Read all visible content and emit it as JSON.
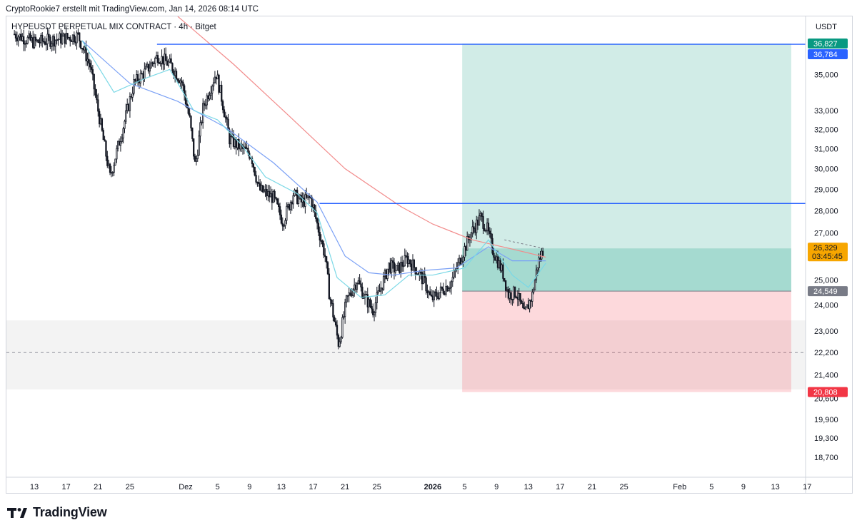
{
  "header": {
    "attribution": "CryptoRookie7 erstellt mit TradingView.com, Jan 14, 2026 08:14 UTC"
  },
  "footer": {
    "brand": "TradingView",
    "logo_icon": "tradingview-logo-icon"
  },
  "chart_data": {
    "type": "candlestick",
    "symbol_label": "HYPEUSDT PERPETUAL MIX CONTRACT · 4h · Bitget",
    "currency": "USDT",
    "y_scale": "log",
    "ylim": [
      18100,
      38500
    ],
    "y_ticks": [
      35000,
      33000,
      32000,
      31000,
      30000,
      29000,
      28000,
      27000,
      25000,
      24000,
      23000,
      22200,
      21400,
      20600,
      19900,
      19300,
      18700
    ],
    "y_tick_labels": [
      "35,000",
      "33,000",
      "32,000",
      "31,000",
      "30,000",
      "29,000",
      "28,000",
      "27,000",
      "25,000",
      "24,000",
      "23,000",
      "22,200",
      "21,400",
      "20,600",
      "19,900",
      "19,300",
      "18,700"
    ],
    "x_labels": [
      "13",
      "17",
      "21",
      "25",
      "Dez",
      "5",
      "9",
      "13",
      "17",
      "21",
      "25",
      "2026",
      "5",
      "9",
      "13",
      "17",
      "21",
      "25",
      "Feb",
      "5",
      "9",
      "13",
      "17"
    ],
    "x_label_days": [
      -50,
      -46,
      -42,
      -38,
      -31,
      -27,
      -23,
      -19,
      -15,
      -11,
      -7,
      0,
      4,
      8,
      12,
      16,
      20,
      24,
      31,
      35,
      39,
      43,
      47
    ],
    "x_bold_labels": [
      "2026"
    ],
    "x_day_range": [
      -53.5,
      46.8
    ],
    "x_unit": "days from 2026-01-01",
    "horizontal_levels": [
      {
        "value": 36784,
        "label": "36,784",
        "color": "#2962ff",
        "from_day": -34.6
      },
      {
        "value": 28340,
        "label": "28,340",
        "color": "#2962ff",
        "from_day": -14.2
      }
    ],
    "price_tags": [
      {
        "value": 36827,
        "label": "36,827",
        "color": "#089981"
      },
      {
        "value": 36784,
        "label": "36,784",
        "color": "#2962ff"
      },
      {
        "value": 26329,
        "label": "26,329",
        "sublabel": "03:45:45",
        "color": "#f7a600",
        "text_color": "#131722"
      },
      {
        "value": 24549,
        "label": "24,549",
        "color": "#787b86"
      },
      {
        "value": 20808,
        "label": "20,808",
        "color": "#f23645"
      }
    ],
    "position": {
      "type": "long",
      "entry": 24549,
      "target": 36827,
      "stop": 20808,
      "current": 26329,
      "start_day": 3.7,
      "end_day": 45
    },
    "support_zone": {
      "top": 23400,
      "bottom": 20900,
      "mid": 22200
    },
    "ohlc_anchors": [
      [
        -52.5,
        37400
      ],
      [
        -50,
        36900
      ],
      [
        -47,
        37100
      ],
      [
        -44.5,
        37300
      ],
      [
        -43,
        35500
      ],
      [
        -42,
        33000
      ],
      [
        -40.5,
        29600
      ],
      [
        -38.8,
        32200
      ],
      [
        -37.5,
        34500
      ],
      [
        -36,
        35200
      ],
      [
        -34.5,
        36100
      ],
      [
        -32.8,
        35500
      ],
      [
        -31.5,
        34600
      ],
      [
        -30.5,
        32500
      ],
      [
        -29.8,
        30100
      ],
      [
        -28.8,
        33200
      ],
      [
        -27.2,
        35100
      ],
      [
        -26.5,
        33700
      ],
      [
        -25.5,
        31500
      ],
      [
        -24,
        31000
      ],
      [
        -22.8,
        30700
      ],
      [
        -21.8,
        29000
      ],
      [
        -20,
        28600
      ],
      [
        -18.8,
        27500
      ],
      [
        -17.5,
        28800
      ],
      [
        -16.5,
        28400
      ],
      [
        -15.3,
        28600
      ],
      [
        -14.5,
        27400
      ],
      [
        -13.5,
        26000
      ],
      [
        -13,
        24500
      ],
      [
        -12.3,
        23300
      ],
      [
        -11.8,
        22500
      ],
      [
        -10.8,
        24200
      ],
      [
        -9.5,
        25000
      ],
      [
        -8.5,
        24300
      ],
      [
        -7.5,
        23800
      ],
      [
        -6.5,
        24700
      ],
      [
        -5.5,
        25600
      ],
      [
        -4.5,
        25400
      ],
      [
        -3.2,
        25900
      ],
      [
        -2,
        25400
      ],
      [
        -1,
        24900
      ],
      [
        -0.2,
        24200
      ],
      [
        1.2,
        24600
      ],
      [
        2.3,
        24900
      ],
      [
        3.5,
        25900
      ],
      [
        4.8,
        27000
      ],
      [
        6,
        27700
      ],
      [
        6.8,
        27200
      ],
      [
        7.5,
        26300
      ],
      [
        8.8,
        25300
      ],
      [
        9.5,
        24400
      ],
      [
        10.5,
        24500
      ],
      [
        11.5,
        23600
      ],
      [
        12.5,
        24400
      ],
      [
        13.2,
        25700
      ],
      [
        13.9,
        26300
      ]
    ],
    "moving_averages": [
      {
        "color": "#f28b8b",
        "anchors": [
          [
            -32,
            38500
          ],
          [
            -25,
            35600
          ],
          [
            -18,
            32700
          ],
          [
            -11,
            30000
          ],
          [
            -4,
            28200
          ],
          [
            0,
            27400
          ],
          [
            5,
            26700
          ],
          [
            10,
            26300
          ],
          [
            14.2,
            25950
          ]
        ]
      },
      {
        "color": "#7aa0f5",
        "anchors": [
          [
            -44,
            37000
          ],
          [
            -38,
            34500
          ],
          [
            -32,
            33500
          ],
          [
            -26,
            32100
          ],
          [
            -20,
            30300
          ],
          [
            -14.5,
            28400
          ],
          [
            -11,
            26000
          ],
          [
            -8,
            25300
          ],
          [
            -5,
            25200
          ],
          [
            -1,
            25400
          ],
          [
            3,
            25500
          ],
          [
            7,
            26400
          ],
          [
            10,
            25800
          ],
          [
            14.2,
            25800
          ]
        ]
      },
      {
        "color": "#7ad8e6",
        "anchors": [
          [
            -44,
            37000
          ],
          [
            -40,
            34000
          ],
          [
            -36,
            34800
          ],
          [
            -33,
            35300
          ],
          [
            -30,
            33000
          ],
          [
            -27,
            32500
          ],
          [
            -24,
            31200
          ],
          [
            -21,
            29600
          ],
          [
            -17,
            28800
          ],
          [
            -14.5,
            27900
          ],
          [
            -12,
            25100
          ],
          [
            -9,
            24300
          ],
          [
            -6,
            24400
          ],
          [
            -3,
            25200
          ],
          [
            0,
            25200
          ],
          [
            4,
            25500
          ],
          [
            7,
            26700
          ],
          [
            10,
            25200
          ],
          [
            12,
            24700
          ],
          [
            14.2,
            25700
          ]
        ]
      }
    ]
  }
}
